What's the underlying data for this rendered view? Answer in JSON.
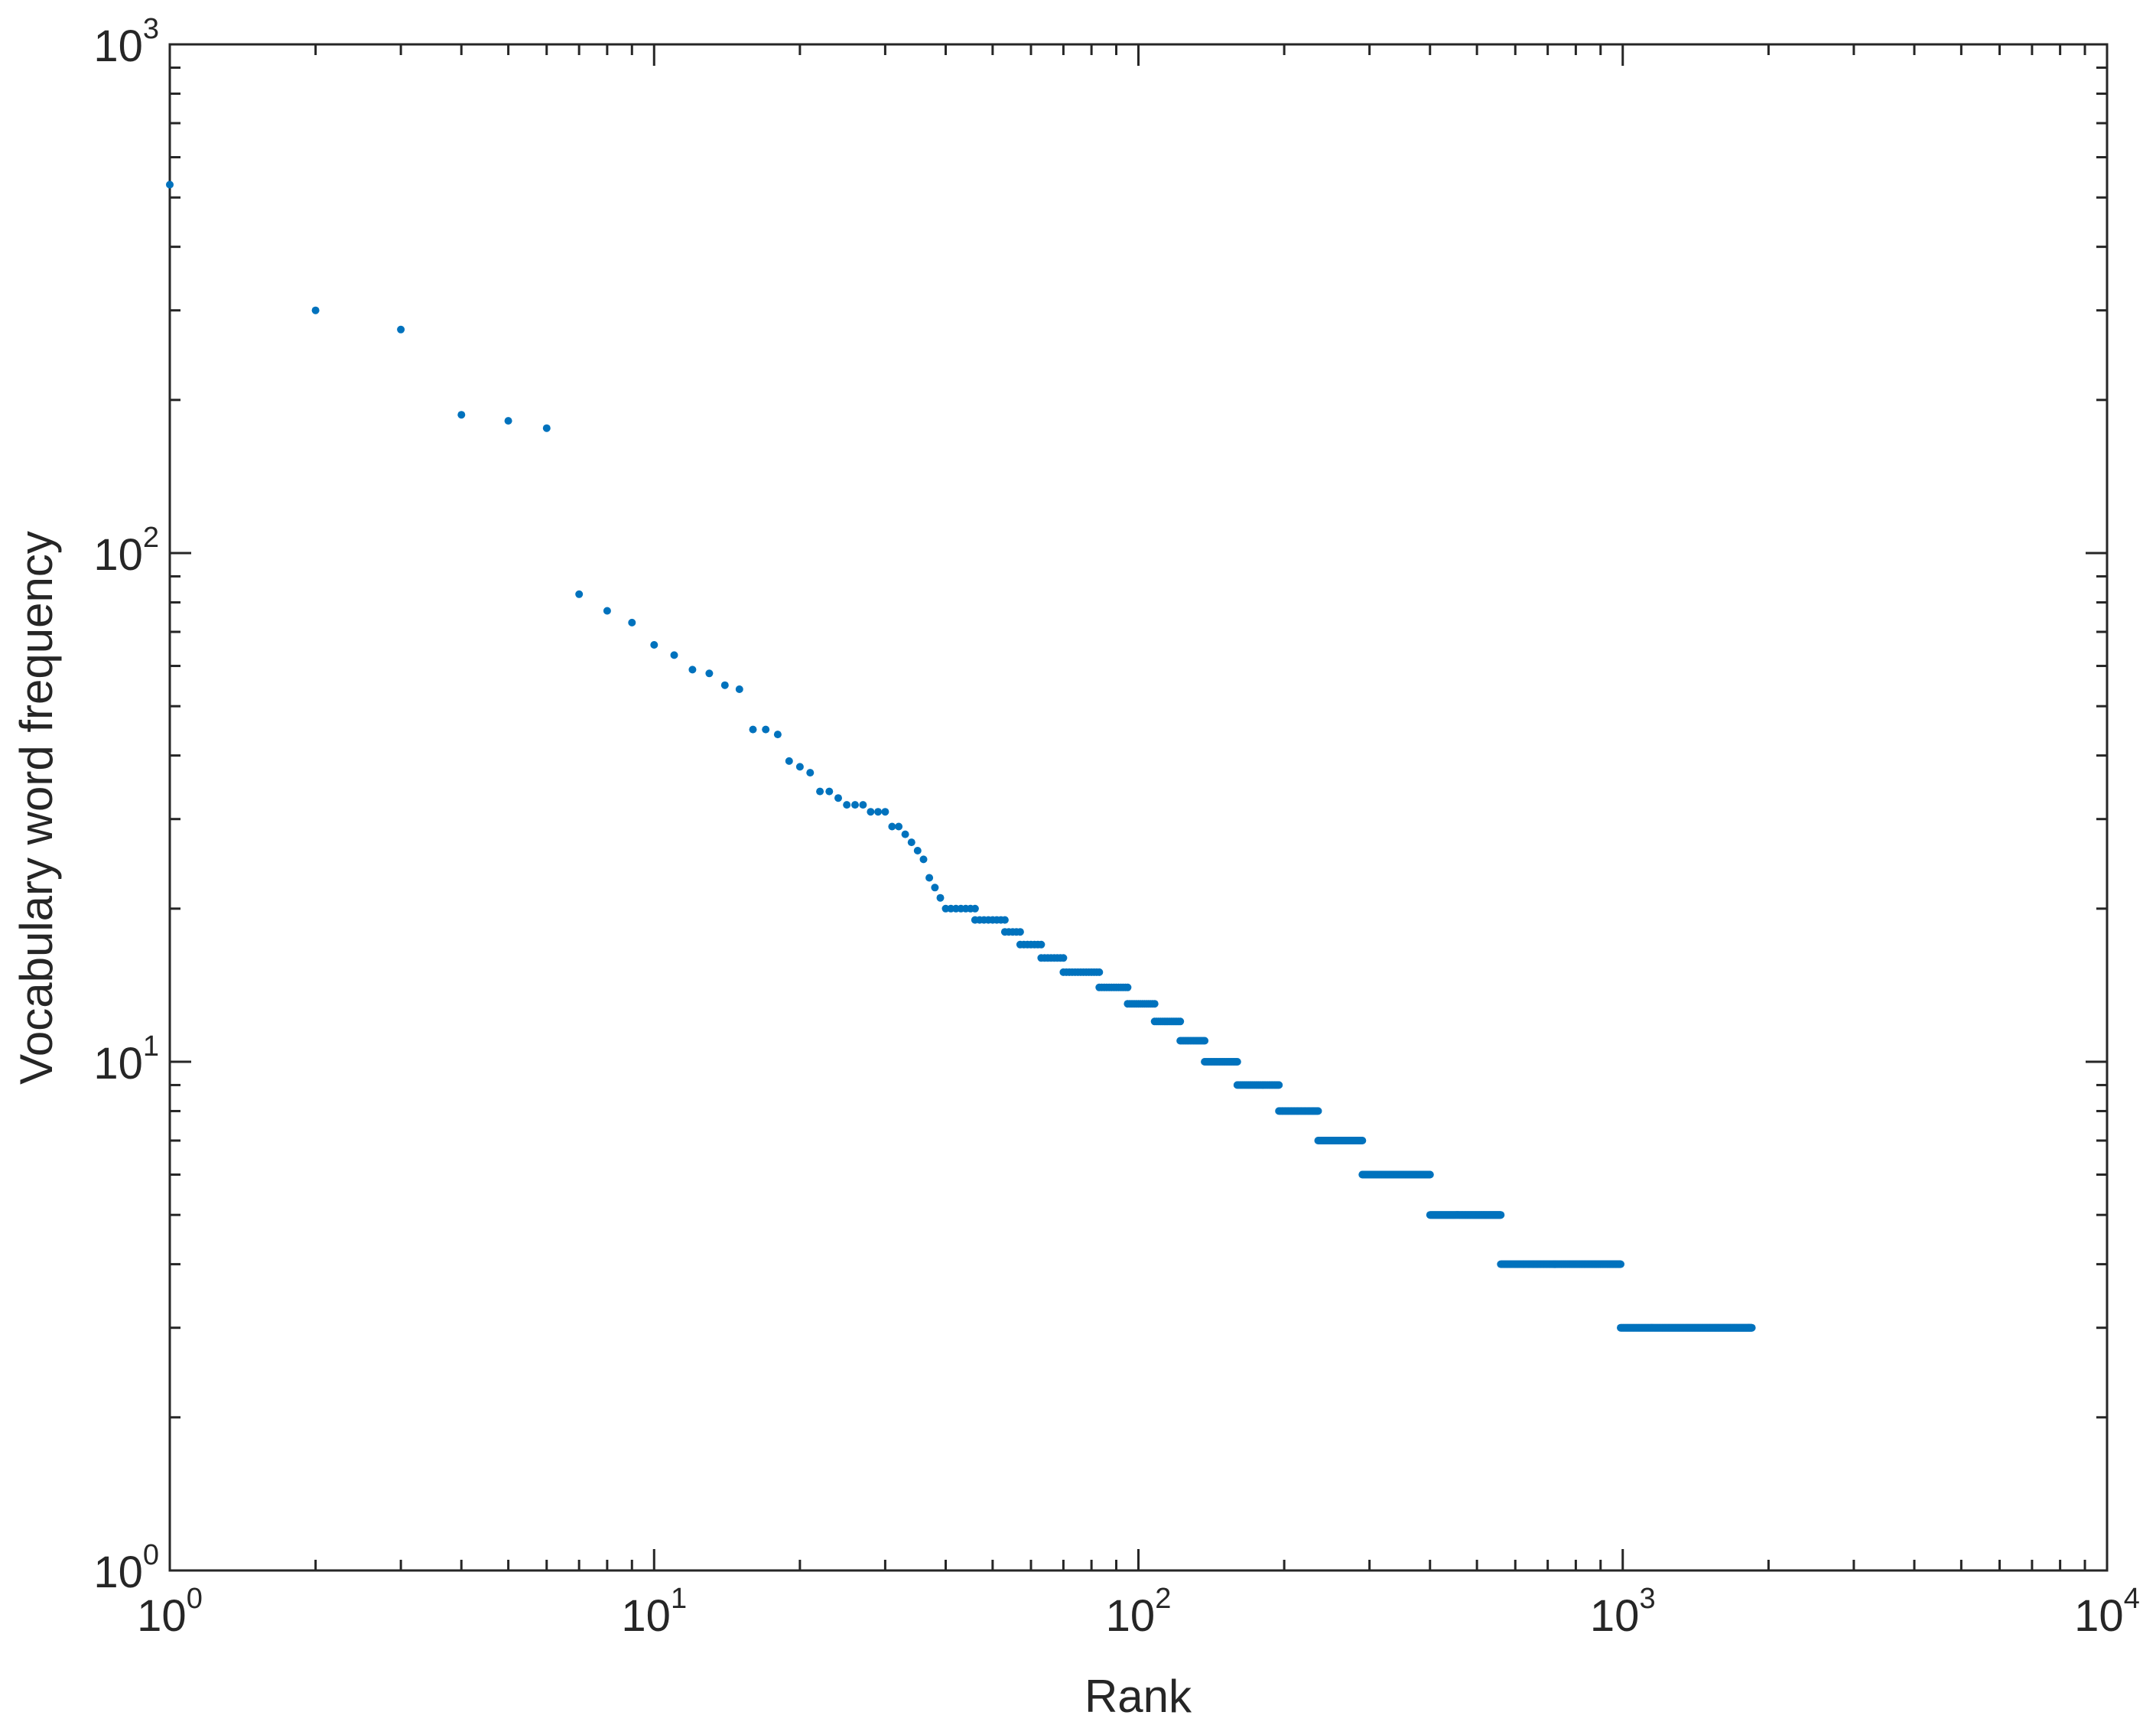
{
  "chart_data": {
    "type": "scatter",
    "title": "",
    "xlabel": "Rank",
    "ylabel": "Vocabulary word frequency",
    "x_scale": "log",
    "y_scale": "log",
    "xlim": [
      1,
      10000
    ],
    "ylim": [
      1,
      1000
    ],
    "grid": false,
    "marker_color": "#0072BD",
    "x_ticks": [
      {
        "base": "10",
        "exp": "0"
      },
      {
        "base": "10",
        "exp": "1"
      },
      {
        "base": "10",
        "exp": "2"
      },
      {
        "base": "10",
        "exp": "3"
      },
      {
        "base": "10",
        "exp": "4"
      }
    ],
    "y_ticks": [
      {
        "base": "10",
        "exp": "0"
      },
      {
        "base": "10",
        "exp": "1"
      },
      {
        "base": "10",
        "exp": "2"
      },
      {
        "base": "10",
        "exp": "3"
      }
    ],
    "points": [
      [
        1,
        530
      ],
      [
        2,
        300
      ],
      [
        3,
        275
      ],
      [
        4,
        187
      ],
      [
        5,
        182
      ],
      [
        6,
        176
      ],
      [
        7,
        83
      ],
      [
        8,
        77
      ],
      [
        9,
        73
      ],
      [
        10,
        66
      ],
      [
        11,
        63
      ],
      [
        12,
        59
      ],
      [
        13,
        58
      ],
      [
        14,
        55
      ],
      [
        15,
        54
      ],
      [
        16,
        45
      ],
      [
        17,
        45
      ],
      [
        18,
        44
      ],
      [
        19,
        39
      ],
      [
        20,
        38
      ],
      [
        21,
        37
      ],
      [
        22,
        34
      ],
      [
        23,
        34
      ],
      [
        24,
        33
      ],
      [
        25,
        32
      ],
      [
        26,
        32
      ],
      [
        27,
        32
      ],
      [
        28,
        31
      ],
      [
        29,
        31
      ],
      [
        30,
        31
      ],
      [
        31,
        29
      ],
      [
        32,
        29
      ],
      [
        33,
        28
      ],
      [
        34,
        27
      ],
      [
        35,
        26
      ],
      [
        36,
        25
      ],
      [
        37,
        23
      ],
      [
        38,
        22
      ],
      [
        39,
        21
      ]
    ],
    "runs": [
      {
        "y": 20,
        "x_start": 40,
        "x_end": 46
      },
      {
        "y": 19,
        "x_start": 46,
        "x_end": 53
      },
      {
        "y": 18,
        "x_start": 53,
        "x_end": 57
      },
      {
        "y": 17,
        "x_start": 57,
        "x_end": 63
      },
      {
        "y": 16,
        "x_start": 63,
        "x_end": 70
      },
      {
        "y": 15,
        "x_start": 70,
        "x_end": 83
      },
      {
        "y": 14,
        "x_start": 83,
        "x_end": 95
      },
      {
        "y": 13,
        "x_start": 95,
        "x_end": 108
      },
      {
        "y": 12,
        "x_start": 108,
        "x_end": 122
      },
      {
        "y": 11,
        "x_start": 122,
        "x_end": 137
      },
      {
        "y": 10,
        "x_start": 137,
        "x_end": 160
      },
      {
        "y": 9,
        "x_start": 160,
        "x_end": 195
      },
      {
        "y": 8,
        "x_start": 195,
        "x_end": 235
      },
      {
        "y": 7,
        "x_start": 235,
        "x_end": 290
      },
      {
        "y": 6,
        "x_start": 290,
        "x_end": 400
      },
      {
        "y": 5,
        "x_start": 400,
        "x_end": 560
      },
      {
        "y": 4,
        "x_start": 560,
        "x_end": 990
      },
      {
        "y": 3,
        "x_start": 990,
        "x_end": 1850
      }
    ]
  }
}
